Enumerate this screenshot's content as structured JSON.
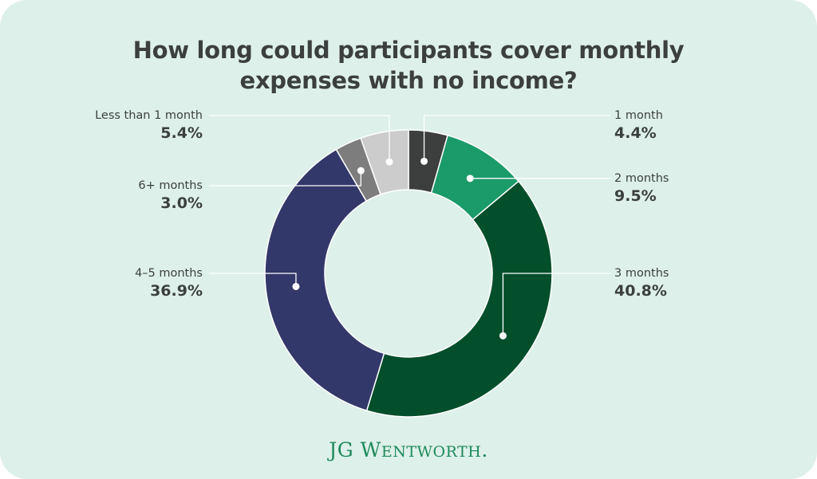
{
  "chart_data": {
    "type": "pie",
    "donut": true,
    "title": "How long could participants cover monthly expenses with no income?",
    "title_lines": [
      "How long could participants cover monthly",
      "expenses with no income?"
    ],
    "slices": [
      {
        "label": "1 month",
        "value": 4.4,
        "value_label": "4.4%",
        "color": "#3c3f3e"
      },
      {
        "label": "2 months",
        "value": 9.5,
        "value_label": "9.5%",
        "color": "#1b9a6a"
      },
      {
        "label": "3 months",
        "value": 40.8,
        "value_label": "40.8%",
        "color": "#034e2b"
      },
      {
        "label": "4–5 months",
        "value": 36.9,
        "value_label": "36.9%",
        "color": "#323869"
      },
      {
        "label": "6+ months",
        "value": 3.0,
        "value_label": "3.0%",
        "color": "#7d7d7d"
      },
      {
        "label": "Less than 1 month",
        "value": 5.4,
        "value_label": "5.4%",
        "color": "#cccccc"
      }
    ],
    "start": "top",
    "direction": "clockwise"
  },
  "brand": {
    "logo_text": "JG WENTWORTH",
    "color": "#1f8a5c"
  }
}
